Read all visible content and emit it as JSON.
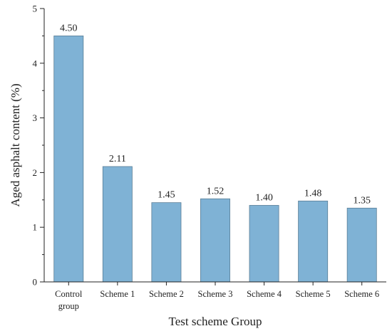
{
  "chart_data": {
    "type": "bar",
    "categories": [
      [
        "Control",
        "group"
      ],
      [
        "Scheme 1"
      ],
      [
        "Scheme 2"
      ],
      [
        "Scheme 3"
      ],
      [
        "Scheme 4"
      ],
      [
        "Scheme 5"
      ],
      [
        "Scheme 6"
      ]
    ],
    "values": [
      4.5,
      2.11,
      1.45,
      1.52,
      1.4,
      1.48,
      1.35
    ],
    "value_labels": [
      "4.50",
      "2.11",
      "1.45",
      "1.52",
      "1.40",
      "1.48",
      "1.35"
    ],
    "title": "",
    "xlabel": "Test scheme Group",
    "ylabel": "Aged asphalt content (%)",
    "ylim": [
      0,
      5
    ],
    "yticks": [
      0,
      1,
      2,
      3,
      4,
      5
    ],
    "grid": false,
    "legend": "none",
    "bar_color": "#7fb2d5",
    "bar_edge_color": "#5a7e96"
  }
}
